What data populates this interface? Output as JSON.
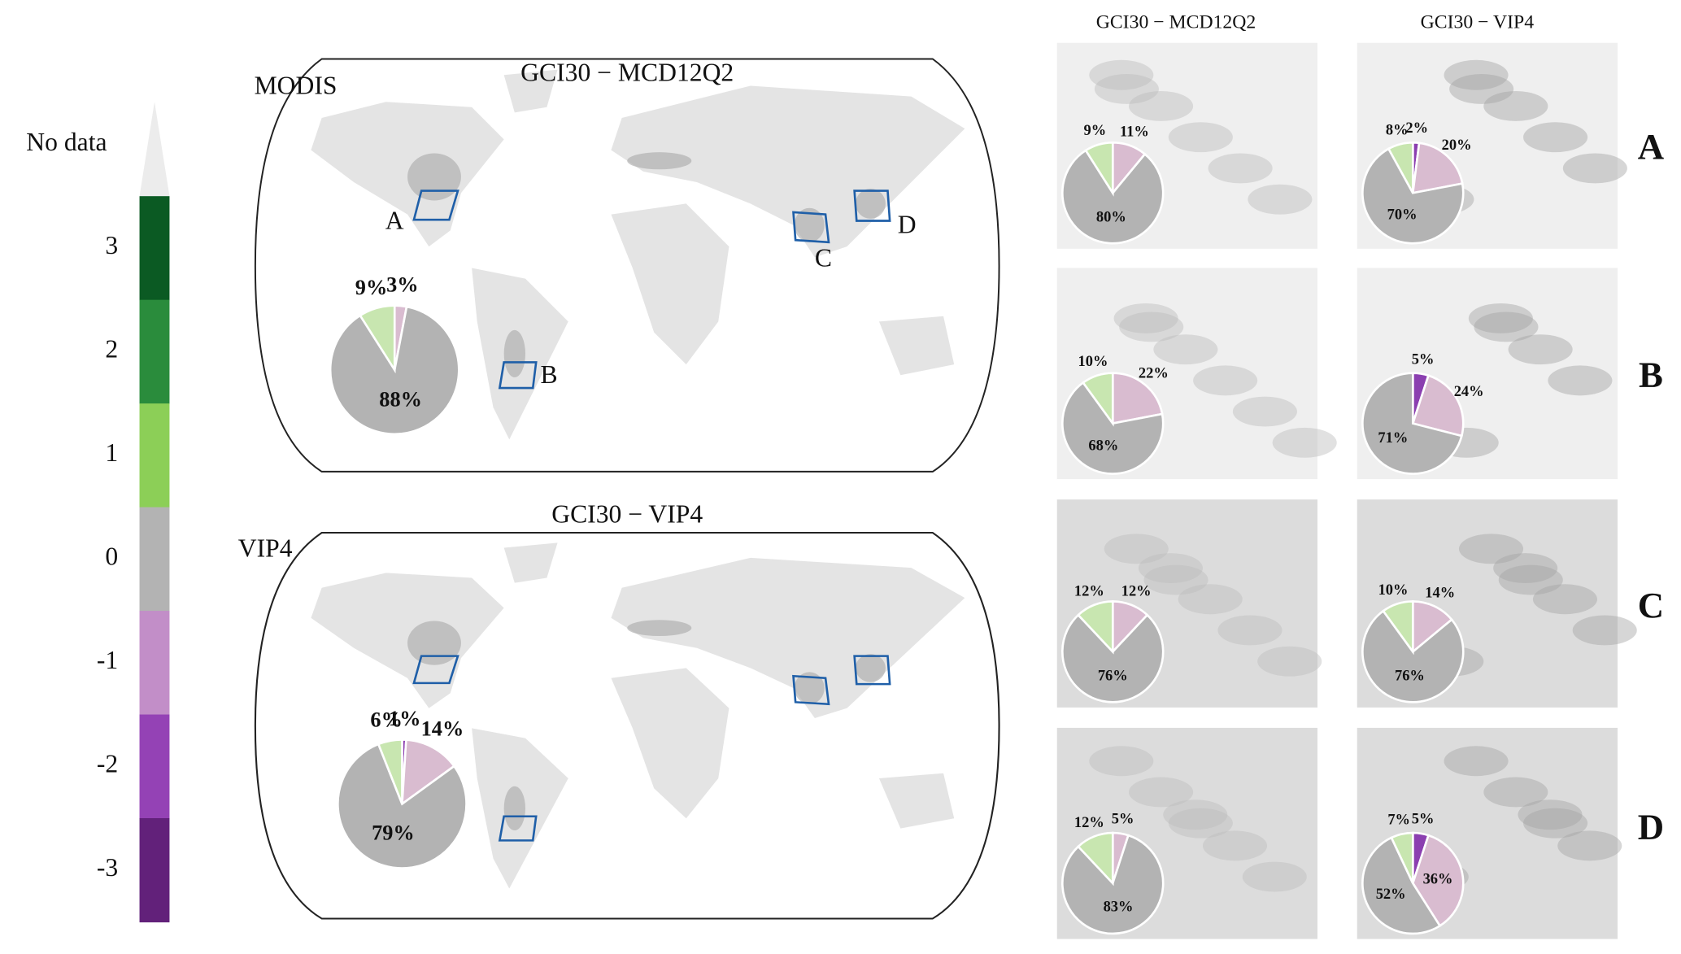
{
  "colorbar": {
    "labels": [
      "No data",
      "3",
      "2",
      "1",
      "0",
      "-1",
      "-2",
      "-3"
    ],
    "colors": [
      "#ececec",
      "#0b5a23",
      "#2a8c3c",
      "#8ccf57",
      "#b3b3b3",
      "#c28ec8",
      "#9442b5",
      "#62217a"
    ]
  },
  "maps": [
    {
      "label": "MODIS",
      "title": "GCI30 − MCD12Q2",
      "box_labels": [
        "A",
        "B",
        "C",
        "D"
      ]
    },
    {
      "label": "VIP4",
      "title": "GCI30 − VIP4"
    }
  ],
  "column_titles": [
    "GCI30 − MCD12Q2",
    "GCI30 − VIP4"
  ],
  "row_labels": [
    "A",
    "B",
    "C",
    "D"
  ],
  "chart_data": [
    {
      "type": "pie",
      "values": [
        3,
        88,
        9
      ],
      "value_labels": [
        "3%",
        "88%",
        "9%"
      ],
      "colors": [
        "#d9bcd0",
        "#b3b3b3",
        "#c8e6b0"
      ]
    },
    {
      "type": "pie",
      "values": [
        1,
        14,
        79,
        6
      ],
      "value_labels": [
        "1%",
        "14%",
        "79%",
        "6%"
      ],
      "colors": [
        "#8b3fb0",
        "#d9bcd0",
        "#b3b3b3",
        "#c8e6b0"
      ]
    },
    {
      "type": "pie",
      "values": [
        11,
        80,
        9
      ],
      "value_labels": [
        "11%",
        "80%",
        "9%"
      ],
      "colors": [
        "#d9bcd0",
        "#b3b3b3",
        "#c8e6b0"
      ]
    },
    {
      "type": "pie",
      "values": [
        2,
        20,
        70,
        8
      ],
      "value_labels": [
        "2%",
        "20%",
        "70%",
        "8%"
      ],
      "colors": [
        "#8b3fb0",
        "#d9bcd0",
        "#b3b3b3",
        "#c8e6b0"
      ]
    },
    {
      "type": "pie",
      "values": [
        22,
        68,
        10
      ],
      "value_labels": [
        "22%",
        "68%",
        "10%"
      ],
      "colors": [
        "#d9bcd0",
        "#b3b3b3",
        "#c8e6b0"
      ]
    },
    {
      "type": "pie",
      "values": [
        5,
        24,
        71
      ],
      "value_labels": [
        "5%",
        "24%",
        "71%"
      ],
      "colors": [
        "#8b3fb0",
        "#d9bcd0",
        "#b3b3b3"
      ]
    },
    {
      "type": "pie",
      "values": [
        12,
        76,
        12
      ],
      "value_labels": [
        "12%",
        "76%",
        "12%"
      ],
      "colors": [
        "#d9bcd0",
        "#b3b3b3",
        "#c8e6b0"
      ]
    },
    {
      "type": "pie",
      "values": [
        14,
        76,
        10
      ],
      "value_labels": [
        "14%",
        "76%",
        "10%"
      ],
      "colors": [
        "#d9bcd0",
        "#b3b3b3",
        "#c8e6b0"
      ]
    },
    {
      "type": "pie",
      "values": [
        5,
        83,
        12
      ],
      "value_labels": [
        "5%",
        "83%",
        "12%"
      ],
      "colors": [
        "#d9bcd0",
        "#b3b3b3",
        "#c8e6b0"
      ]
    },
    {
      "type": "pie",
      "values": [
        5,
        36,
        52,
        7
      ],
      "value_labels": [
        "5%",
        "36%",
        "52%",
        "7%"
      ],
      "colors": [
        "#8b3fb0",
        "#d9bcd0",
        "#b3b3b3",
        "#c8e6b0"
      ]
    }
  ]
}
